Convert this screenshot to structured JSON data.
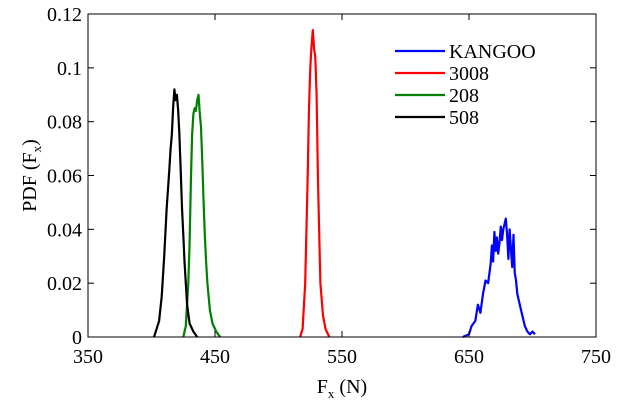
{
  "chart_data": {
    "type": "line",
    "title": "",
    "xlabel": "F",
    "xlabel_sub": "x",
    "xlabel_unit": " (N)",
    "ylabel": "PDF (F",
    "ylabel_sub": "x",
    "ylabel_close": ")",
    "xlim": [
      350,
      750
    ],
    "ylim": [
      0,
      0.12
    ],
    "xticks": [
      350,
      450,
      550,
      650,
      750
    ],
    "yticks": [
      0,
      0.02,
      0.04,
      0.06,
      0.08,
      0.1,
      0.12
    ],
    "xtick_labels": [
      "350",
      "450",
      "550",
      "650",
      "750"
    ],
    "ytick_labels": [
      "0",
      "0.02",
      "0.04",
      "0.06",
      "0.08",
      "0.1",
      "0.12"
    ],
    "grid": false,
    "legend_position": "top-right",
    "series": [
      {
        "name": "KANGOO",
        "color": "#0000ff",
        "points": [
          [
            645,
            0
          ],
          [
            650,
            0.001
          ],
          [
            652,
            0.004
          ],
          [
            655,
            0.006
          ],
          [
            657,
            0.012
          ],
          [
            659,
            0.009
          ],
          [
            661,
            0.016
          ],
          [
            663,
            0.021
          ],
          [
            665,
            0.02
          ],
          [
            667,
            0.027
          ],
          [
            668,
            0.034
          ],
          [
            669,
            0.028
          ],
          [
            670,
            0.039
          ],
          [
            671,
            0.032
          ],
          [
            672,
            0.037
          ],
          [
            673,
            0.031
          ],
          [
            674,
            0.035
          ],
          [
            675,
            0.041
          ],
          [
            676,
            0.036
          ],
          [
            677,
            0.04
          ],
          [
            678,
            0.042
          ],
          [
            679,
            0.044
          ],
          [
            680,
            0.038
          ],
          [
            681,
            0.029
          ],
          [
            682,
            0.04
          ],
          [
            683,
            0.033
          ],
          [
            684,
            0.026
          ],
          [
            685,
            0.038
          ],
          [
            686,
            0.024
          ],
          [
            687,
            0.021
          ],
          [
            688,
            0.016
          ],
          [
            690,
            0.012
          ],
          [
            692,
            0.008
          ],
          [
            694,
            0.004
          ],
          [
            696,
            0.002
          ],
          [
            698,
            0.001
          ],
          [
            700,
            0.002
          ],
          [
            702,
            0.001
          ]
        ]
      },
      {
        "name": "3008",
        "color": "#ff0000",
        "points": [
          [
            517,
            0
          ],
          [
            519,
            0.003
          ],
          [
            521,
            0.02
          ],
          [
            523,
            0.06
          ],
          [
            524,
            0.085
          ],
          [
            525,
            0.1
          ],
          [
            526,
            0.108
          ],
          [
            527,
            0.114
          ],
          [
            528,
            0.107
          ],
          [
            529,
            0.104
          ],
          [
            530,
            0.09
          ],
          [
            531,
            0.06
          ],
          [
            532,
            0.04
          ],
          [
            533,
            0.02
          ],
          [
            535,
            0.008
          ],
          [
            537,
            0.003
          ],
          [
            540,
            0
          ]
        ]
      },
      {
        "name": "208",
        "color": "#008000",
        "points": [
          [
            425,
            0
          ],
          [
            427,
            0.004
          ],
          [
            429,
            0.02
          ],
          [
            430,
            0.035
          ],
          [
            431,
            0.058
          ],
          [
            432,
            0.075
          ],
          [
            433,
            0.083
          ],
          [
            434,
            0.085
          ],
          [
            435,
            0.084
          ],
          [
            436,
            0.088
          ],
          [
            437,
            0.09
          ],
          [
            438,
            0.083
          ],
          [
            439,
            0.078
          ],
          [
            440,
            0.065
          ],
          [
            441,
            0.05
          ],
          [
            442,
            0.038
          ],
          [
            443,
            0.028
          ],
          [
            444,
            0.02
          ],
          [
            446,
            0.01
          ],
          [
            448,
            0.005
          ],
          [
            451,
            0.002
          ],
          [
            454,
            0
          ]
        ]
      },
      {
        "name": "508",
        "color": "#000000",
        "points": [
          [
            402,
            0
          ],
          [
            404,
            0.003
          ],
          [
            406,
            0.006
          ],
          [
            408,
            0.015
          ],
          [
            410,
            0.03
          ],
          [
            412,
            0.048
          ],
          [
            414,
            0.062
          ],
          [
            415,
            0.07
          ],
          [
            416,
            0.075
          ],
          [
            417,
            0.085
          ],
          [
            418,
            0.092
          ],
          [
            419,
            0.088
          ],
          [
            420,
            0.09
          ],
          [
            421,
            0.084
          ],
          [
            422,
            0.075
          ],
          [
            423,
            0.062
          ],
          [
            424,
            0.048
          ],
          [
            425,
            0.038
          ],
          [
            426,
            0.028
          ],
          [
            427,
            0.02
          ],
          [
            428,
            0.012
          ],
          [
            430,
            0.005
          ],
          [
            433,
            0.002
          ],
          [
            436,
            0
          ]
        ]
      }
    ]
  }
}
